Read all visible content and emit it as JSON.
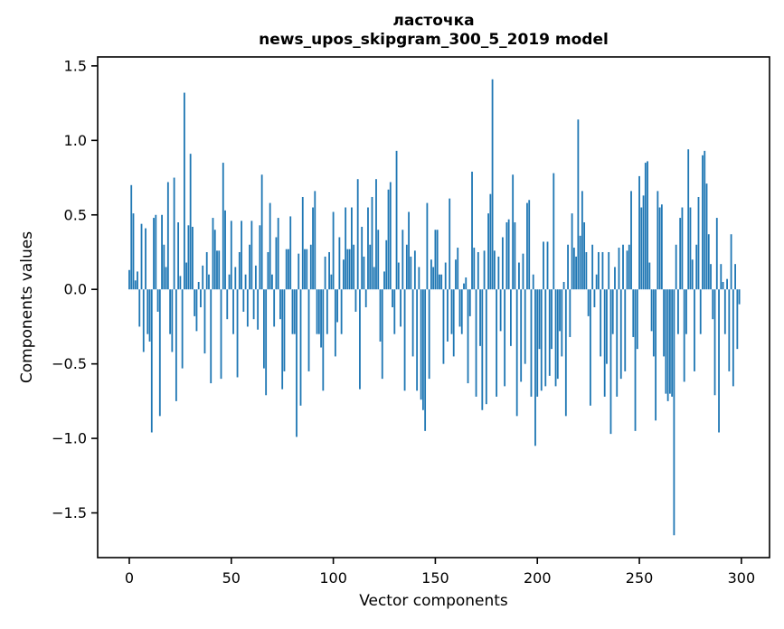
{
  "figure": {
    "title": "ласточка",
    "subtitle": "news_upos_skipgram_300_5_2019 model",
    "xlabel": "Vector components",
    "ylabel": "Components values"
  },
  "chart_data": {
    "type": "bar",
    "title": "ласточка",
    "subtitle": "news_upos_skipgram_300_5_2019 model",
    "xlabel": "Vector components",
    "ylabel": "Components values",
    "grid": false,
    "legend": null,
    "bar_color": "#1f77b4",
    "axis_color": "#000000",
    "bar_width": 0.8,
    "x_start": 0,
    "xlim": [
      -15.5,
      313.8
    ],
    "ylim": [
      -1.8,
      1.56
    ],
    "xticks": [
      0,
      50,
      100,
      150,
      200,
      250,
      300
    ],
    "xtick_labels": [
      "0",
      "50",
      "100",
      "150",
      "200",
      "250",
      "300"
    ],
    "yticks": [
      -1.5,
      -1.0,
      -0.5,
      0.0,
      0.5,
      1.0,
      1.5
    ],
    "ytick_labels": [
      "−1.5",
      "−1.0",
      "−0.5",
      "0.0",
      "0.5",
      "1.0",
      "1.5"
    ],
    "values": [
      0.13,
      0.7,
      0.51,
      0.06,
      0.12,
      -0.25,
      0.44,
      -0.42,
      0.41,
      -0.3,
      -0.35,
      -0.96,
      0.48,
      0.5,
      -0.15,
      -0.85,
      0.5,
      0.3,
      0.15,
      0.72,
      -0.3,
      -0.42,
      0.75,
      -0.75,
      0.45,
      0.09,
      -0.53,
      1.32,
      0.18,
      0.43,
      0.91,
      0.42,
      -0.18,
      -0.28,
      0.05,
      -0.12,
      0.16,
      -0.43,
      0.25,
      0.1,
      -0.63,
      0.48,
      0.4,
      0.26,
      0.26,
      -0.6,
      0.85,
      0.53,
      -0.2,
      0.1,
      0.46,
      -0.3,
      0.15,
      -0.59,
      0.25,
      0.46,
      -0.15,
      0.1,
      -0.25,
      0.3,
      0.46,
      -0.2,
      0.16,
      -0.27,
      0.43,
      0.77,
      -0.53,
      -0.71,
      0.25,
      0.58,
      0.1,
      -0.25,
      0.35,
      0.48,
      -0.2,
      -0.67,
      -0.55,
      0.27,
      0.27,
      0.49,
      -0.3,
      -0.3,
      -0.99,
      0.24,
      -0.78,
      0.62,
      0.27,
      0.27,
      -0.55,
      0.3,
      0.55,
      0.66,
      -0.3,
      -0.3,
      -0.39,
      -0.68,
      0.22,
      -0.3,
      0.25,
      0.1,
      0.52,
      -0.45,
      -0.22,
      0.35,
      -0.3,
      0.2,
      0.55,
      0.27,
      0.27,
      0.55,
      0.3,
      -0.15,
      0.74,
      -0.67,
      0.42,
      0.22,
      -0.12,
      0.55,
      0.3,
      0.62,
      0.15,
      0.74,
      0.4,
      -0.35,
      -0.6,
      0.12,
      0.33,
      0.67,
      0.72,
      -0.12,
      -0.3,
      0.93,
      0.18,
      -0.25,
      0.4,
      -0.68,
      0.3,
      0.52,
      0.22,
      -0.45,
      0.26,
      -0.68,
      0.15,
      -0.74,
      -0.81,
      -0.95,
      0.58,
      -0.6,
      0.2,
      0.15,
      0.4,
      0.4,
      0.1,
      0.1,
      -0.5,
      0.18,
      -0.35,
      0.61,
      -0.3,
      -0.45,
      0.2,
      0.28,
      -0.25,
      -0.3,
      0.04,
      0.08,
      -0.63,
      -0.18,
      0.79,
      0.28,
      -0.72,
      0.25,
      -0.38,
      -0.81,
      0.26,
      -0.77,
      0.51,
      0.64,
      1.41,
      0.26,
      -0.72,
      0.22,
      -0.28,
      0.35,
      -0.65,
      0.45,
      0.47,
      -0.38,
      0.77,
      0.45,
      -0.85,
      0.18,
      -0.62,
      0.24,
      -0.5,
      0.58,
      0.6,
      -0.72,
      0.1,
      -1.05,
      -0.72,
      -0.4,
      -0.68,
      0.32,
      -0.65,
      0.32,
      -0.58,
      -0.4,
      0.78,
      -0.65,
      -0.6,
      -0.28,
      -0.45,
      0.05,
      -0.85,
      0.3,
      -0.32,
      0.51,
      0.28,
      0.22,
      1.14,
      0.36,
      0.66,
      0.45,
      0.25,
      -0.18,
      -0.78,
      0.3,
      -0.12,
      0.1,
      0.25,
      -0.45,
      0.25,
      -0.72,
      -0.5,
      0.25,
      -0.97,
      -0.3,
      0.15,
      -0.72,
      0.28,
      -0.6,
      0.3,
      -0.55,
      0.26,
      0.3,
      0.66,
      -0.32,
      -0.95,
      -0.4,
      0.76,
      0.55,
      0.63,
      0.85,
      0.86,
      0.18,
      -0.28,
      -0.45,
      -0.88,
      0.66,
      0.55,
      0.57,
      -0.45,
      -0.7,
      -0.75,
      -0.7,
      -0.72,
      -1.65,
      0.3,
      -0.3,
      0.48,
      0.55,
      -0.62,
      -0.3,
      0.94,
      0.55,
      0.2,
      -0.55,
      0.3,
      0.62,
      -0.3,
      0.9,
      0.93,
      0.71,
      0.37,
      0.17,
      -0.2,
      -0.71,
      0.48,
      -0.96,
      0.17,
      0.05,
      -0.3,
      0.07,
      -0.55,
      0.37,
      -0.65,
      0.17,
      -0.4,
      -0.1
    ]
  }
}
